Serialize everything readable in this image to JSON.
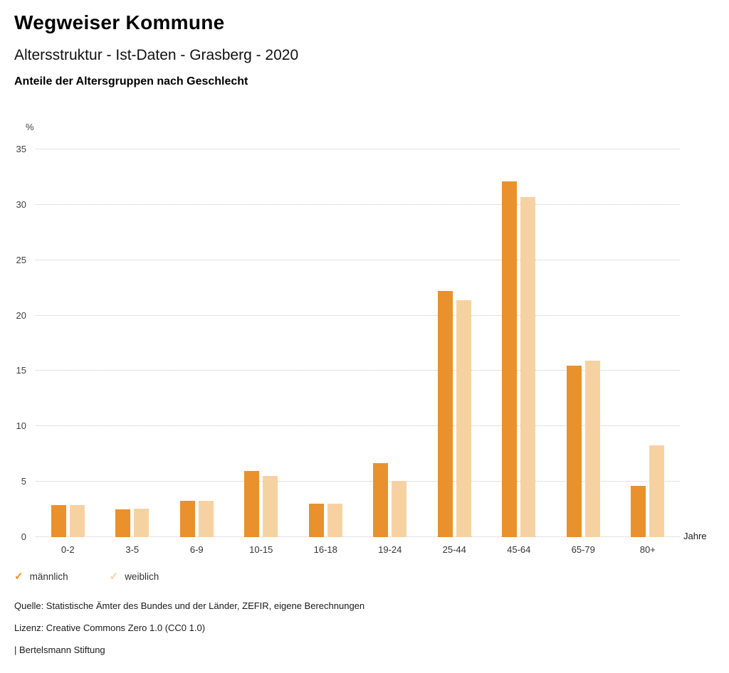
{
  "header": {
    "title": "Wegweiser Kommune",
    "subtitle": "Altersstruktur - Ist-Daten - Grasberg - 2020",
    "heading": "Anteile der Altersgruppen nach Geschlecht"
  },
  "chart_data": {
    "type": "bar",
    "title": "Anteile der Altersgruppen nach Geschlecht",
    "categories": [
      "0-2",
      "3-5",
      "6-9",
      "10-15",
      "16-18",
      "19-24",
      "25-44",
      "45-64",
      "65-79",
      "80+"
    ],
    "series": [
      {
        "name": "männlich",
        "color": "#e8912d",
        "values": [
          2.9,
          2.5,
          3.3,
          6.0,
          3.0,
          6.7,
          22.2,
          32.1,
          15.5,
          4.6
        ]
      },
      {
        "name": "weiblich",
        "color": "#f6d2a3",
        "values": [
          2.9,
          2.6,
          3.3,
          5.5,
          3.0,
          5.1,
          21.4,
          30.7,
          15.9,
          8.3
        ]
      }
    ],
    "xlabel": "Jahre",
    "ylabel": "%",
    "ylim": [
      0,
      35
    ],
    "ytick_step": 5,
    "grid": "horizontal-dotted",
    "legend_position": "bottom-left",
    "legend_marker": "checkmark"
  },
  "footer": {
    "source": "Quelle: Statistische Ämter des Bundes und der Länder, ZEFIR, eigene Berechnungen",
    "license": "Lizenz: Creative Commons Zero 1.0 (CC0 1.0)",
    "attribution": "| Bertelsmann Stiftung"
  }
}
